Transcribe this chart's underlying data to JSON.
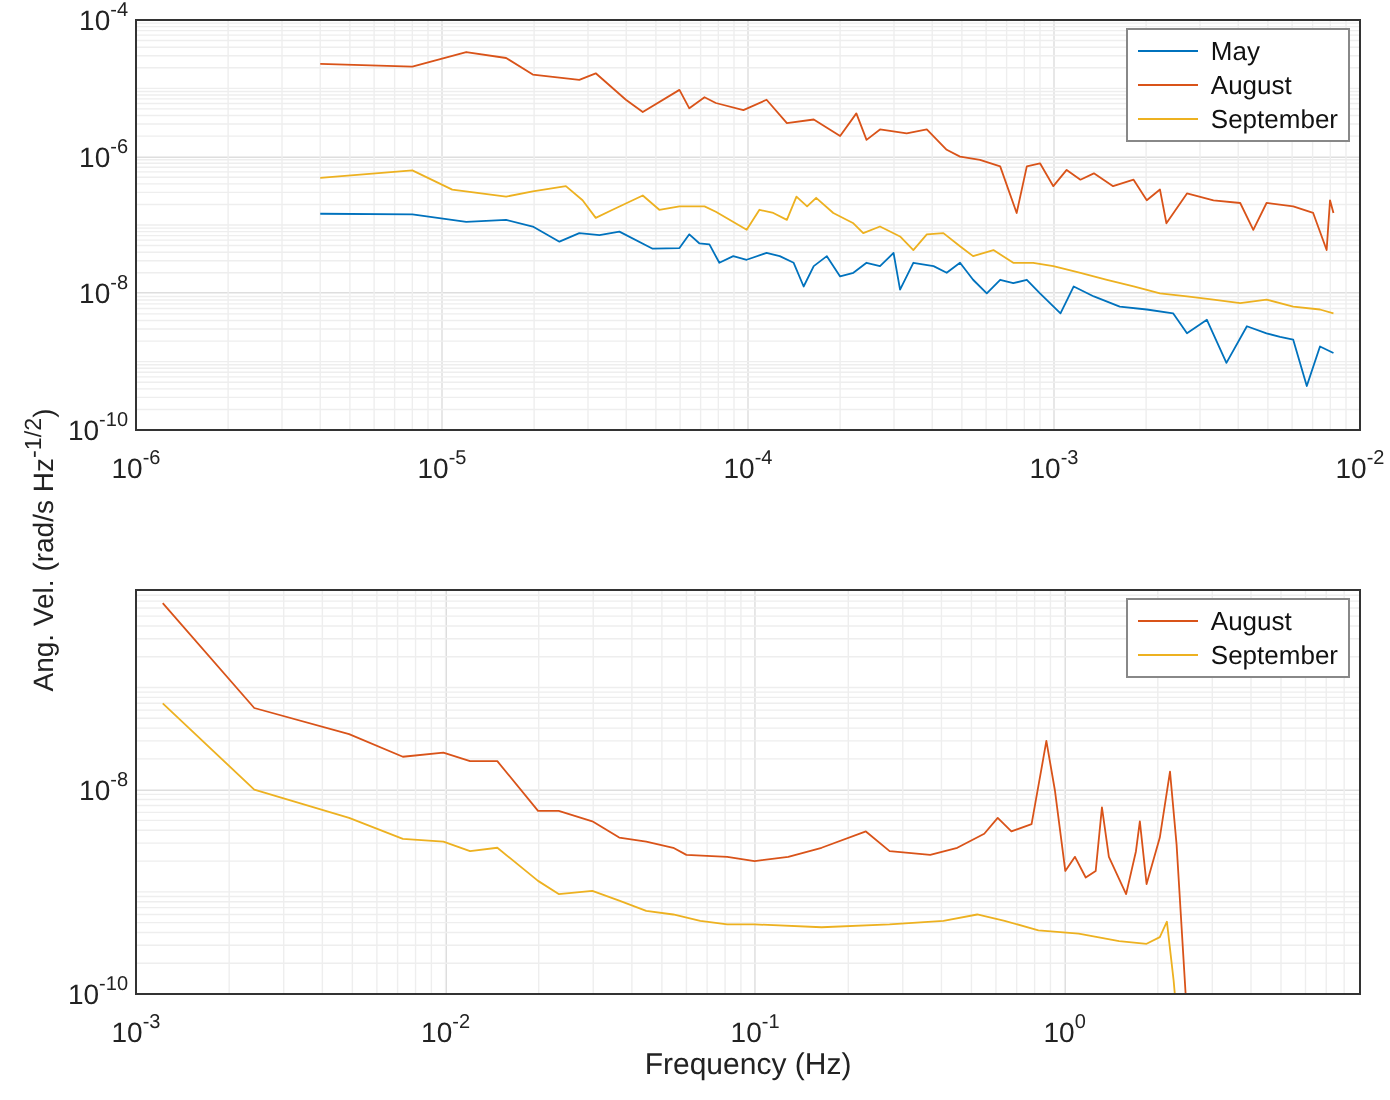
{
  "chart_data": [
    {
      "type": "line",
      "log": "xy",
      "grid": true,
      "legend": "top right",
      "marker": "none",
      "ylabel": "Ang. Vel. (rad/s Hz$^{-1/2}$)",
      "xlim": [
        1e-06,
        0.01
      ],
      "ylim": [
        1e-10,
        0.0001
      ],
      "xticks": [
        {
          "value": 1e-06,
          "label": "10$^{-6}$"
        },
        {
          "value": 1e-05,
          "label": "10$^{-5}$"
        },
        {
          "value": 0.0001,
          "label": "10$^{-4}$"
        },
        {
          "value": 0.001,
          "label": "10$^{-3}$"
        },
        {
          "value": 0.01,
          "label": "10$^{-2}$"
        }
      ],
      "yticks": [
        {
          "value": 1e-10,
          "label": "10$^{-10}$"
        },
        {
          "value": 1e-08,
          "label": "10$^{-8}$"
        },
        {
          "value": 1e-06,
          "label": "10$^{-6}$"
        },
        {
          "value": 0.0001,
          "label": "10$^{-4}$"
        }
      ],
      "series": [
        {
          "name": "May",
          "color": "#0072bd",
          "x": [
            4e-06,
            8e-06,
            1.2e-05,
            1.62e-05,
            1.98e-05,
            2.42e-05,
            2.81e-05,
            3.27e-05,
            3.8e-05,
            4.88e-05,
            5.97e-05,
            6.43e-05,
            6.93e-05,
            7.48e-05,
            8.06e-05,
            8.95e-05,
            9.9e-05,
            0.000115,
            0.000127,
            0.000141,
            0.000152,
            0.000164,
            0.000181,
            0.0002,
            0.000221,
            0.000244,
            0.00027,
            0.000299,
            0.000314,
            0.000347,
            0.000404,
            0.000446,
            0.000493,
            0.000544,
            0.000603,
            0.000667,
            0.000736,
            0.000815,
            0.0009,
            0.00105,
            0.00116,
            0.00135,
            0.00164,
            0.00201,
            0.00245,
            0.00272,
            0.00316,
            0.00366,
            0.00427,
            0.00495,
            0.00548,
            0.00605,
            0.0067,
            0.0074,
            0.00819
          ],
          "values": [
            1.46e-07,
            1.43e-07,
            1.11e-07,
            1.19e-07,
            9.5e-08,
            5.7e-08,
            7.6e-08,
            7.1e-08,
            8e-08,
            4.5e-08,
            4.6e-08,
            7.3e-08,
            5.4e-08,
            5.2e-08,
            2.8e-08,
            3.5e-08,
            3.1e-08,
            3.9e-08,
            3.5e-08,
            2.8e-08,
            1.26e-08,
            2.5e-08,
            3.5e-08,
            1.77e-08,
            2e-08,
            2.8e-08,
            2.5e-08,
            3.9e-08,
            1.13e-08,
            2.8e-08,
            2.5e-08,
            2e-08,
            2.8e-08,
            1.58e-08,
            1e-08,
            1.58e-08,
            1.41e-08,
            1.58e-08,
            1e-08,
            5.1e-09,
            1.26e-08,
            9e-09,
            6.4e-09,
            5.8e-09,
            5.1e-09,
            2.6e-09,
            4.1e-09,
            9.6e-10,
            3.3e-09,
            2.6e-09,
            2.3e-09,
            2.1e-09,
            4.4e-10,
            1.67e-09,
            1.34e-09
          ]
        },
        {
          "name": "August",
          "color": "#d95319",
          "x": [
            4e-06,
            8e-06,
            1.2e-05,
            1.62e-05,
            1.98e-05,
            2.81e-05,
            3.18e-05,
            3.99e-05,
            4.53e-05,
            5.97e-05,
            6.43e-05,
            7.21e-05,
            7.85e-05,
            9.66e-05,
            0.000115,
            0.000134,
            0.000164,
            0.0002,
            0.000226,
            0.000244,
            0.00027,
            0.00033,
            0.000384,
            0.000446,
            0.000493,
            0.000573,
            0.000667,
            0.000755,
            0.000815,
            0.0009,
            0.000995,
            0.0011,
            0.00122,
            0.00135,
            0.00156,
            0.00182,
            0.00201,
            0.00222,
            0.00233,
            0.00272,
            0.00332,
            0.00406,
            0.00448,
            0.00495,
            0.00605,
            0.00703,
            0.00778,
            0.00798,
            0.00819
          ],
          "values": [
            2.28e-05,
            2.08e-05,
            3.4e-05,
            2.78e-05,
            1.59e-05,
            1.33e-05,
            1.66e-05,
            6.8e-06,
            4.5e-06,
            9.5e-06,
            5.1e-06,
            7.4e-06,
            6.1e-06,
            4.8e-06,
            6.8e-06,
            3.1e-06,
            3.5e-06,
            2e-06,
            4.3e-06,
            1.76e-06,
            2.5e-06,
            2.2e-06,
            2.5e-06,
            1.26e-06,
            1e-06,
            9e-07,
            7.2e-07,
            1.5e-07,
            7.2e-07,
            8e-07,
            3.7e-07,
            6.4e-07,
            4.6e-07,
            5.7e-07,
            3.7e-07,
            4.6e-07,
            2.3e-07,
            3.3e-07,
            1.06e-07,
            2.9e-07,
            2.3e-07,
            2.1e-07,
            8.5e-08,
            2.1e-07,
            1.87e-07,
            1.5e-07,
            4.3e-08,
            2.3e-07,
            1.5e-07
          ]
        },
        {
          "name": "September",
          "color": "#edb120",
          "x": [
            4e-06,
            8e-06,
            1.08e-05,
            1.62e-05,
            1.98e-05,
            2.54e-05,
            2.88e-05,
            3.18e-05,
            3.61e-05,
            4.53e-05,
            5.13e-05,
            5.97e-05,
            7.21e-05,
            7.85e-05,
            9.9e-05,
            0.000109,
            0.000121,
            0.000134,
            0.000144,
            0.000156,
            0.000167,
            0.00019,
            0.000221,
            0.000238,
            0.00027,
            0.000314,
            0.000347,
            0.000384,
            0.000435,
            0.000493,
            0.000544,
            0.000634,
            0.000736,
            0.000855,
            0.000995,
            0.00122,
            0.00149,
            0.00182,
            0.00222,
            0.00272,
            0.00332,
            0.00406,
            0.00495,
            0.00605,
            0.0074,
            0.00819
          ],
          "values": [
            4.9e-07,
            6.3e-07,
            3.3e-07,
            2.6e-07,
            3.1e-07,
            3.7e-07,
            2.3e-07,
            1.27e-07,
            1.67e-07,
            2.7e-07,
            1.67e-07,
            1.87e-07,
            1.87e-07,
            1.56e-07,
            8.5e-08,
            1.67e-07,
            1.5e-07,
            1.19e-07,
            2.6e-07,
            1.87e-07,
            2.5e-07,
            1.5e-07,
            1.06e-07,
            7.6e-08,
            9.5e-08,
            6.8e-08,
            4.3e-08,
            7.3e-08,
            7.6e-08,
            4.9e-08,
            3.5e-08,
            4.3e-08,
            2.8e-08,
            2.8e-08,
            2.5e-08,
            2e-08,
            1.58e-08,
            1.26e-08,
            1e-08,
            9e-09,
            8.1e-09,
            7.2e-09,
            8.1e-09,
            6.4e-09,
            5.8e-09,
            5.1e-09
          ]
        }
      ]
    },
    {
      "type": "line",
      "log": "xy",
      "grid": true,
      "legend": "top right",
      "marker": "none",
      "xlabel": "Frequency (Hz)",
      "xlim": [
        0.001,
        9
      ],
      "ylim": [
        1e-10,
        9e-07
      ],
      "xticks": [
        {
          "value": 0.001,
          "label": "10$^{-3}$"
        },
        {
          "value": 0.01,
          "label": "10$^{-2}$"
        },
        {
          "value": 0.1,
          "label": "10$^{-1}$"
        },
        {
          "value": 1,
          "label": "10$^{0}$"
        }
      ],
      "yticks": [
        {
          "value": 1e-10,
          "label": "10$^{-10}$"
        },
        {
          "value": 1e-08,
          "label": "10$^{-8}$"
        }
      ],
      "series": [
        {
          "name": "August",
          "color": "#d95319",
          "x": [
            0.00122,
            0.00241,
            0.00488,
            0.00728,
            0.00984,
            0.012,
            0.0147,
            0.0199,
            0.0232,
            0.0298,
            0.0364,
            0.0445,
            0.0544,
            0.06,
            0.0813,
            0.0996,
            0.128,
            0.164,
            0.228,
            0.272,
            0.368,
            0.45,
            0.55,
            0.608,
            0.673,
            0.782,
            0.843,
            0.873,
            0.931,
            1.005,
            1.08,
            1.17,
            1.26,
            1.32,
            1.39,
            1.58,
            1.7,
            1.75,
            1.84,
            2.03,
            2.19,
            2.3,
            2.46
          ],
          "values": [
            6.7e-07,
            6.3e-08,
            3.5e-08,
            2.1e-08,
            2.3e-08,
            1.9e-08,
            1.9e-08,
            6.2e-09,
            6.2e-09,
            4.9e-09,
            3.4e-09,
            3.1e-09,
            2.7e-09,
            2.3e-09,
            2.2e-09,
            2e-09,
            2.2e-09,
            2.7e-09,
            3.9e-09,
            2.5e-09,
            2.3e-09,
            2.7e-09,
            3.7e-09,
            5.3e-09,
            3.9e-09,
            4.6e-09,
            1.64e-08,
            3e-08,
            9.7e-09,
            1.6e-09,
            2.2e-09,
            1.38e-09,
            1.6e-09,
            6.7e-09,
            2.2e-09,
            9.5e-10,
            2.5e-09,
            4.9e-09,
            1.19e-09,
            3.4e-09,
            1.5e-08,
            2.9e-09,
            1e-10
          ]
        },
        {
          "name": "September",
          "color": "#edb120",
          "x": [
            0.00122,
            0.00241,
            0.00488,
            0.00728,
            0.00984,
            0.012,
            0.0147,
            0.0199,
            0.0232,
            0.0298,
            0.0364,
            0.0445,
            0.0544,
            0.0665,
            0.0813,
            0.0996,
            0.164,
            0.272,
            0.406,
            0.522,
            0.64,
            0.823,
            1.11,
            1.5,
            1.84,
            2.03,
            2.14,
            2.25,
            2.27
          ],
          "values": [
            7e-08,
            1e-08,
            5.3e-09,
            3.3e-09,
            3.1e-09,
            2.5e-09,
            2.7e-09,
            1.28e-09,
            9.5e-10,
            1.02e-09,
            8.2e-10,
            6.5e-10,
            6e-10,
            5.2e-10,
            4.8e-10,
            4.8e-10,
            4.5e-10,
            4.8e-10,
            5.2e-10,
            6e-10,
            5.2e-10,
            4.2e-10,
            3.9e-10,
            3.3e-10,
            3.1e-10,
            3.6e-10,
            5.1e-10,
            1.35e-10,
            1e-10
          ]
        }
      ]
    }
  ]
}
